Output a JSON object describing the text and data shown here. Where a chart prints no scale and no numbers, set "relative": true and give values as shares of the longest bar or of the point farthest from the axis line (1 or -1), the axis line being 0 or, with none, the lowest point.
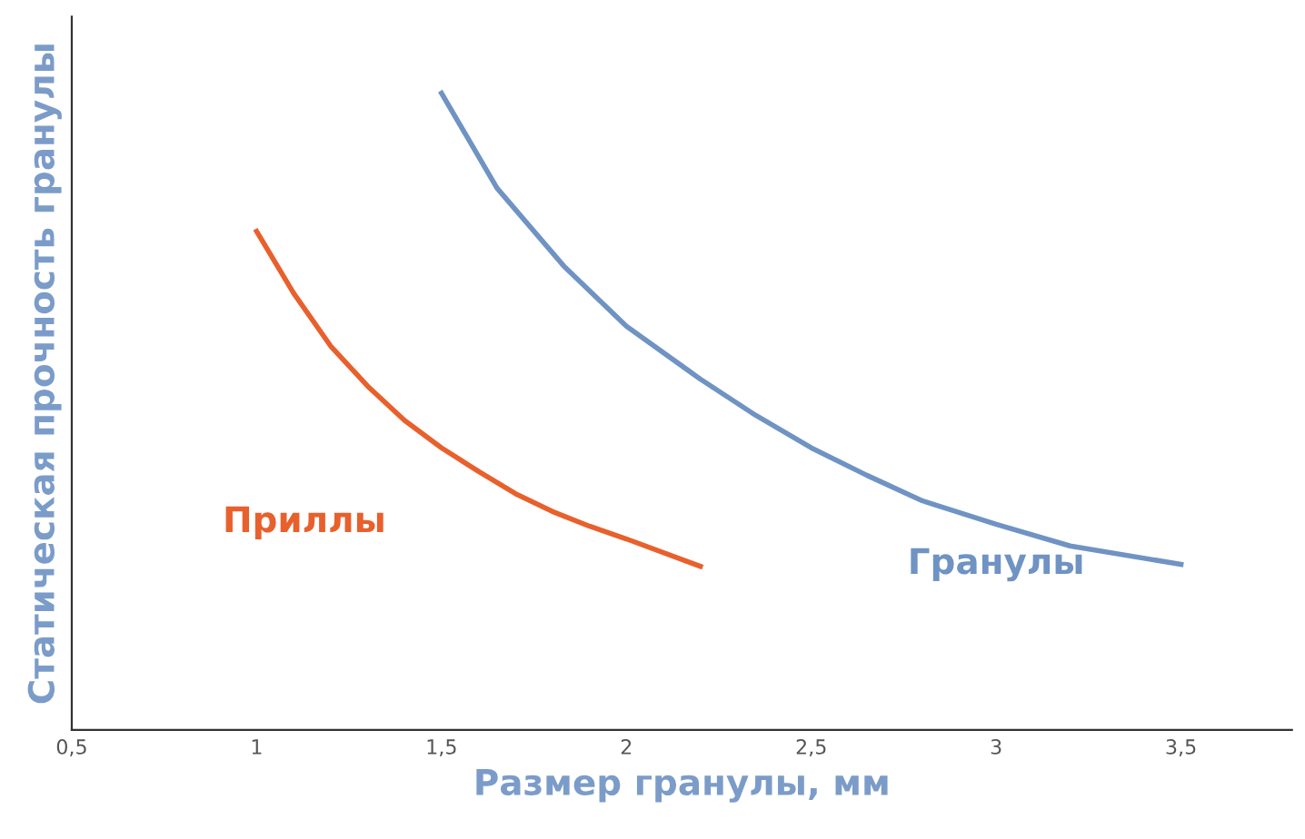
{
  "chart_data": {
    "type": "line",
    "relative": true,
    "xlabel": "Размер гранулы, мм",
    "ylabel": "Статическая прочность гранулы",
    "xlim": [
      0.5,
      3.8
    ],
    "xticks": [
      {
        "value": 0.5,
        "label": "0,5"
      },
      1,
      {
        "value": 1.5,
        "label": "1,5"
      },
      2,
      {
        "value": 2.5,
        "label": "2,5"
      },
      3,
      {
        "value": 3.5,
        "label": "3,5"
      }
    ],
    "grid": false,
    "legend": false,
    "marker": "none",
    "line_style": "solid",
    "series": [
      {
        "name": "Приллы",
        "color": "#e8602c",
        "x": [
          1,
          1.1,
          1.2,
          1.3,
          1.4,
          1.5,
          1.6,
          1.7,
          1.8,
          1.9,
          2,
          2.2
        ],
        "values": [
          0.783,
          0.686,
          0.603,
          0.54,
          0.486,
          0.443,
          0.406,
          0.371,
          0.343,
          0.32,
          0.3,
          0.257
        ]
      },
      {
        "name": "Гранулы",
        "color": "#6f93c3",
        "x": [
          1.5,
          1.65,
          1.83,
          2,
          2.2,
          2.35,
          2.5,
          2.65,
          2.8,
          3,
          3.2,
          3.5
        ],
        "values": [
          1.0,
          0.851,
          0.729,
          0.634,
          0.551,
          0.494,
          0.443,
          0.4,
          0.36,
          0.323,
          0.289,
          0.26
        ]
      }
    ]
  }
}
